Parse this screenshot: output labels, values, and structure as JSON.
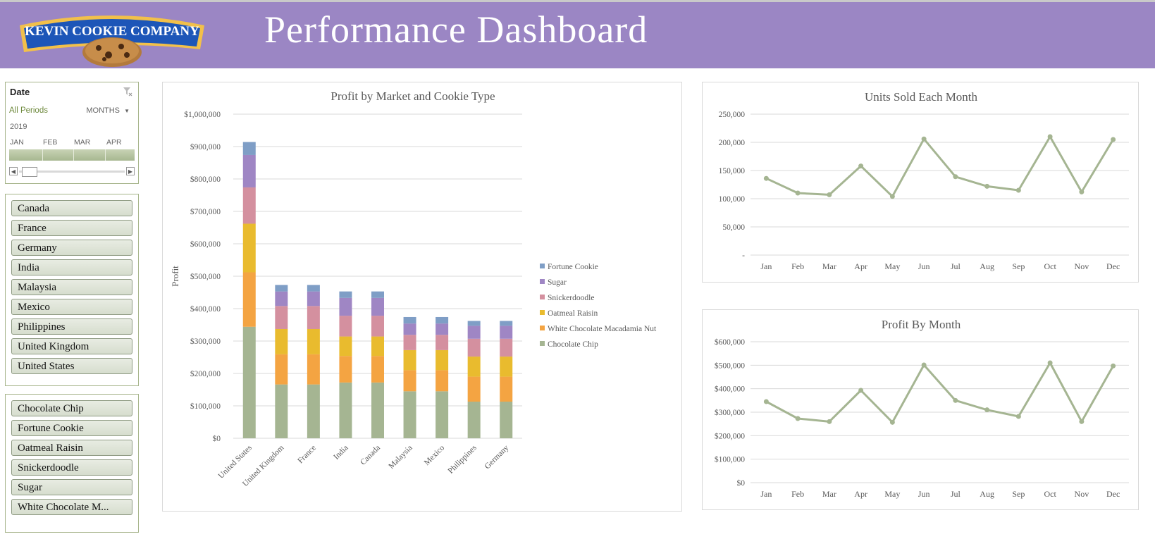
{
  "header": {
    "title": "Performance Dashboard",
    "logo_text": "KEVIN COOKIE COMPANY",
    "bg_color": "#9b86c4"
  },
  "timeline": {
    "title": "Date",
    "range_label": "All Periods",
    "period_selector": "MONTHS",
    "year": "2019",
    "months": [
      "JAN",
      "FEB",
      "MAR",
      "APR"
    ],
    "clear_icon": "filter-clear-icon"
  },
  "market_slicer": {
    "items": [
      "Canada",
      "France",
      "Germany",
      "India",
      "Malaysia",
      "Mexico",
      "Philippines",
      "United Kingdom",
      "United States"
    ]
  },
  "cookie_slicer": {
    "items": [
      "Chocolate Chip",
      "Fortune Cookie",
      "Oatmeal Raisin",
      "Snickerdoodle",
      "Sugar",
      "White Chocolate M..."
    ]
  },
  "chart_data": [
    {
      "type": "bar",
      "stacked": true,
      "title": "Profit by Market and Cookie Type",
      "xlabel": "",
      "ylabel": "Profit",
      "ylim": [
        0,
        1000000
      ],
      "yticks": [
        "$0",
        "$100,000",
        "$200,000",
        "$300,000",
        "$400,000",
        "$500,000",
        "$600,000",
        "$700,000",
        "$800,000",
        "$900,000",
        "$1,000,000"
      ],
      "categories": [
        "United States",
        "United Kingdom",
        "France",
        "India",
        "Canada",
        "Malaysia",
        "Mexico",
        "Philippines",
        "Germany"
      ],
      "legend_position": "right",
      "series": [
        {
          "name": "Chocolate Chip",
          "color": "#a5b592",
          "values": [
            344000,
            166000,
            166000,
            172000,
            172000,
            145000,
            145000,
            113000,
            113000
          ]
        },
        {
          "name": "White Chocolate Macadamia Nut",
          "color": "#f4a442",
          "values": [
            168000,
            93000,
            93000,
            82000,
            82000,
            65000,
            65000,
            77000,
            77000
          ]
        },
        {
          "name": "Oatmeal Raisin",
          "color": "#e9bb2e",
          "values": [
            150000,
            78000,
            78000,
            60000,
            60000,
            62000,
            62000,
            62000,
            62000
          ]
        },
        {
          "name": "Snickerdoodle",
          "color": "#d4909f",
          "values": [
            112000,
            71000,
            71000,
            64000,
            64000,
            47000,
            47000,
            55000,
            55000
          ]
        },
        {
          "name": "Sugar",
          "color": "#9f86c4",
          "values": [
            100000,
            45000,
            45000,
            55000,
            55000,
            35000,
            35000,
            40000,
            40000
          ]
        },
        {
          "name": "Fortune Cookie",
          "color": "#7f9ec6",
          "values": [
            40000,
            20000,
            20000,
            20000,
            20000,
            20000,
            20000,
            15000,
            15000
          ]
        }
      ]
    },
    {
      "type": "line",
      "title": "Units Sold Each Month",
      "xlabel": "",
      "ylabel": "",
      "ylim": [
        0,
        250000
      ],
      "yticks": [
        "-",
        "50,000",
        "100,000",
        "150,000",
        "200,000",
        "250,000"
      ],
      "categories": [
        "Jan",
        "Feb",
        "Mar",
        "Apr",
        "May",
        "Jun",
        "Jul",
        "Aug",
        "Sep",
        "Oct",
        "Nov",
        "Dec"
      ],
      "color": "#a5b592",
      "values": [
        136000,
        110000,
        107000,
        158000,
        104000,
        206000,
        139000,
        122000,
        115000,
        210000,
        112000,
        205000
      ]
    },
    {
      "type": "line",
      "title": "Profit By Month",
      "xlabel": "",
      "ylabel": "",
      "ylim": [
        0,
        600000
      ],
      "yticks": [
        "$0",
        "$100,000",
        "$200,000",
        "$300,000",
        "$400,000",
        "$500,000",
        "$600,000"
      ],
      "categories": [
        "Jan",
        "Feb",
        "Mar",
        "Apr",
        "May",
        "Jun",
        "Jul",
        "Aug",
        "Sep",
        "Oct",
        "Nov",
        "Dec"
      ],
      "color": "#a5b592",
      "values": [
        345000,
        273000,
        260000,
        393000,
        257000,
        501000,
        350000,
        310000,
        282000,
        510000,
        260000,
        497000
      ]
    }
  ]
}
